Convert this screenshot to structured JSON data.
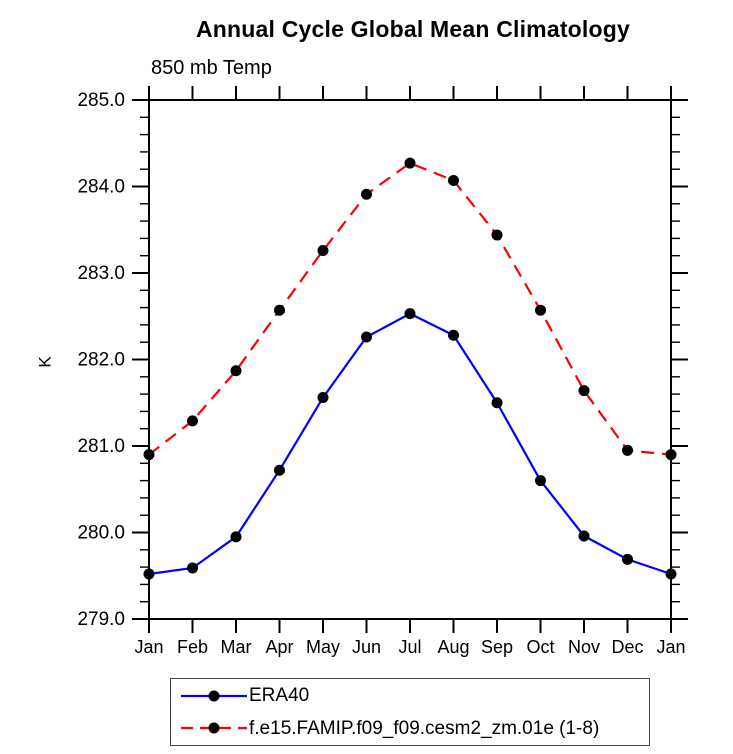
{
  "header": {
    "title": "Annual Cycle Global Mean Climatology",
    "subtitle": "850 mb Temp"
  },
  "chart_data": {
    "type": "line",
    "title": "Annual Cycle Global Mean Climatology",
    "subtitle": "850 mb Temp",
    "xlabel": "",
    "ylabel": "K",
    "ylim": [
      279.0,
      285.0
    ],
    "ytick_labels": [
      "279.0",
      "280.0",
      "281.0",
      "282.0",
      "283.0",
      "284.0",
      "285.0"
    ],
    "minor_tick_interval": 0.2,
    "grid": false,
    "legend_position": "bottom",
    "categories": [
      "Jan",
      "Feb",
      "Mar",
      "Apr",
      "May",
      "Jun",
      "Jul",
      "Aug",
      "Sep",
      "Oct",
      "Nov",
      "Dec",
      "Jan"
    ],
    "series": [
      {
        "name": "ERA40",
        "color": "#0000ff",
        "style": "solid",
        "marker": "filled-circle",
        "marker_color": "#000000",
        "values": [
          279.52,
          279.59,
          279.95,
          280.72,
          281.56,
          282.26,
          282.53,
          282.28,
          281.5,
          280.6,
          279.96,
          279.69,
          279.52
        ]
      },
      {
        "name": "f.e15.FAMIP.f09_f09.cesm2_zm.01e (1-8)",
        "color": "#ff0000",
        "style": "dashed",
        "marker": "filled-circle",
        "marker_color": "#000000",
        "values": [
          280.9,
          281.29,
          281.87,
          282.57,
          283.26,
          283.91,
          284.27,
          284.07,
          283.44,
          282.57,
          281.64,
          280.95,
          280.9
        ]
      }
    ]
  }
}
